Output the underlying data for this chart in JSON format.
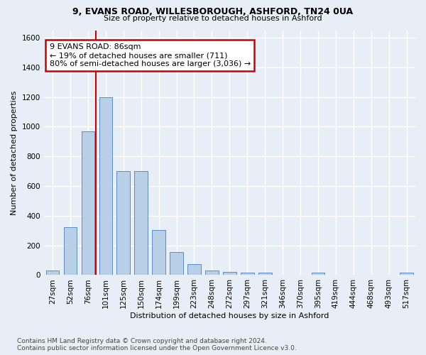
{
  "title_line1": "9, EVANS ROAD, WILLESBOROUGH, ASHFORD, TN24 0UA",
  "title_line2": "Size of property relative to detached houses in Ashford",
  "xlabel": "Distribution of detached houses by size in Ashford",
  "ylabel": "Number of detached properties",
  "footnote": "Contains HM Land Registry data © Crown copyright and database right 2024.\nContains public sector information licensed under the Open Government Licence v3.0.",
  "bar_labels": [
    "27sqm",
    "52sqm",
    "76sqm",
    "101sqm",
    "125sqm",
    "150sqm",
    "174sqm",
    "199sqm",
    "223sqm",
    "248sqm",
    "272sqm",
    "297sqm",
    "321sqm",
    "346sqm",
    "370sqm",
    "395sqm",
    "419sqm",
    "444sqm",
    "468sqm",
    "493sqm",
    "517sqm"
  ],
  "bar_values": [
    30,
    325,
    970,
    1200,
    700,
    700,
    305,
    155,
    75,
    30,
    20,
    15,
    15,
    0,
    0,
    15,
    0,
    0,
    0,
    0,
    15
  ],
  "bar_color": "#b8cfe8",
  "bar_edge_color": "#5b8cc8",
  "ylim": [
    0,
    1650
  ],
  "yticks": [
    0,
    200,
    400,
    600,
    800,
    1000,
    1200,
    1400,
    1600
  ],
  "vline_x": 2.43,
  "annotation_text": "9 EVANS ROAD: 86sqm\n← 19% of detached houses are smaller (711)\n80% of semi-detached houses are larger (3,036) →",
  "annotation_box_facecolor": "#ffffff",
  "annotation_box_edgecolor": "#cc0000",
  "vline_color": "#cc0000",
  "bg_color": "#e8eef5",
  "grid_color": "#ffffff",
  "title1_fontsize": 9,
  "title2_fontsize": 8,
  "ylabel_fontsize": 8,
  "xlabel_fontsize": 8,
  "tick_fontsize": 7.5,
  "footnote_fontsize": 6.5
}
